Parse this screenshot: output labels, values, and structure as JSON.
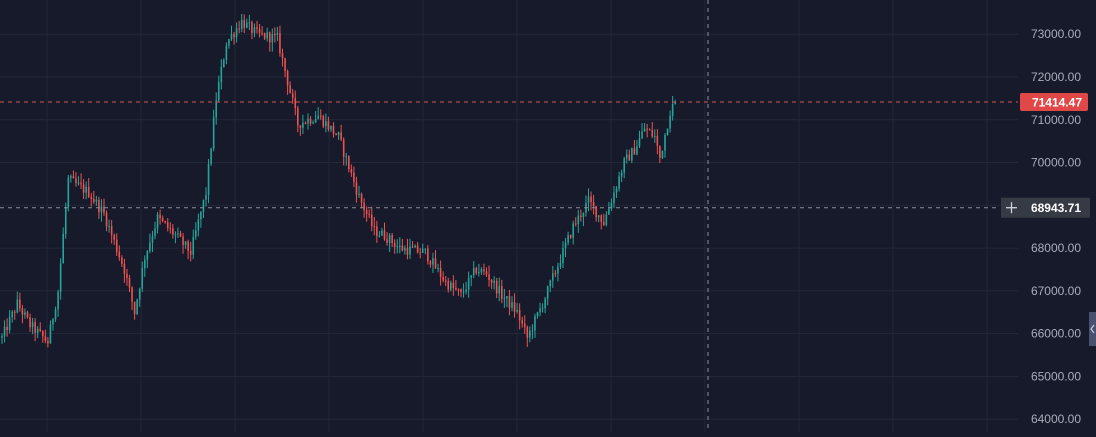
{
  "colors": {
    "background": "#161a2b",
    "grid": "#232838",
    "axis_text": "#a9adb9",
    "up": "#26a69a",
    "down": "#ef5350",
    "last_price_line": "#d9534f",
    "last_price_badge": "#e04848",
    "crosshair": "#8a8e9c",
    "crosshair_badge": "#363a45"
  },
  "chart_data": {
    "type": "candlestick",
    "ylim": [
      63700,
      73800
    ],
    "y_ticks": [
      "73000.00",
      "72000.00",
      "71000.00",
      "70000.00",
      "69000.00",
      "68000.00",
      "67000.00",
      "66000.00",
      "65000.00",
      "64000.00"
    ],
    "last_price": {
      "value": 71414.47,
      "label": "71414.47"
    },
    "crosshair": {
      "price": 68943.71,
      "label": "68943.71",
      "icon": "plus-icon"
    },
    "grid": true,
    "anchors": [
      [
        0,
        65900
      ],
      [
        6,
        66700
      ],
      [
        11,
        66200
      ],
      [
        18,
        65800
      ],
      [
        22,
        67000
      ],
      [
        26,
        69600
      ],
      [
        34,
        69300
      ],
      [
        40,
        68800
      ],
      [
        48,
        67500
      ],
      [
        52,
        66500
      ],
      [
        56,
        67800
      ],
      [
        61,
        68700
      ],
      [
        68,
        68300
      ],
      [
        74,
        67900
      ],
      [
        80,
        69300
      ],
      [
        84,
        71500
      ],
      [
        88,
        72800
      ],
      [
        94,
        73300
      ],
      [
        100,
        73000
      ],
      [
        108,
        72900
      ],
      [
        116,
        70900
      ],
      [
        124,
        71100
      ],
      [
        132,
        70600
      ],
      [
        140,
        69200
      ],
      [
        146,
        68400
      ],
      [
        150,
        68300
      ],
      [
        156,
        68000
      ],
      [
        166,
        67900
      ],
      [
        174,
        67200
      ],
      [
        180,
        66900
      ],
      [
        186,
        67500
      ],
      [
        190,
        67400
      ],
      [
        196,
        66900
      ],
      [
        202,
        66500
      ],
      [
        206,
        65900
      ],
      [
        212,
        66700
      ],
      [
        218,
        67600
      ],
      [
        224,
        68500
      ],
      [
        230,
        69100
      ],
      [
        236,
        68600
      ],
      [
        240,
        69300
      ],
      [
        244,
        70000
      ],
      [
        248,
        70300
      ],
      [
        252,
        70800
      ],
      [
        256,
        70600
      ],
      [
        258,
        70100
      ],
      [
        262,
        71200
      ],
      [
        264,
        71414.47
      ]
    ]
  }
}
